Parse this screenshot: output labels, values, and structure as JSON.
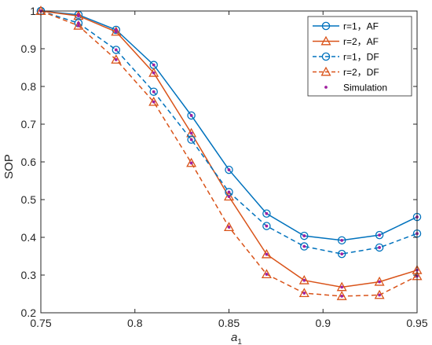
{
  "chart_data": {
    "type": "line",
    "xlabel": "a",
    "xlabel_sub": "1",
    "ylabel": "SOP",
    "xlim": [
      0.75,
      0.95
    ],
    "ylim": [
      0.2,
      1.0
    ],
    "xticks": [
      0.75,
      0.8,
      0.85,
      0.9,
      0.95
    ],
    "xtick_labels": [
      "0.75",
      "0.8",
      "0.85",
      "0.9",
      "0.95"
    ],
    "yticks": [
      0.2,
      0.3,
      0.4,
      0.5,
      0.6,
      0.7,
      0.8,
      0.9,
      1.0
    ],
    "ytick_labels": [
      "0.2",
      "0.3",
      "0.4",
      "0.5",
      "0.6",
      "0.7",
      "0.8",
      "0.9",
      "1"
    ],
    "grid": false,
    "legend_position": "top-right",
    "x": [
      0.75,
      0.77,
      0.79,
      0.81,
      0.83,
      0.85,
      0.87,
      0.89,
      0.91,
      0.93,
      0.95
    ],
    "series": [
      {
        "name": "r=1，AF",
        "color": "#0072BD",
        "dash": "solid",
        "marker": "circle",
        "values": [
          1.0,
          0.99,
          0.95,
          0.857,
          0.723,
          0.579,
          0.463,
          0.404,
          0.392,
          0.406,
          0.454
        ]
      },
      {
        "name": "r=2，AF",
        "color": "#D95319",
        "dash": "solid",
        "marker": "triangle",
        "values": [
          1.0,
          0.987,
          0.945,
          0.836,
          0.676,
          0.508,
          0.355,
          0.286,
          0.268,
          0.282,
          0.313
        ]
      },
      {
        "name": "r=1，DF",
        "color": "#0072BD",
        "dash": "dashed",
        "marker": "circle",
        "values": [
          1.0,
          0.968,
          0.897,
          0.786,
          0.659,
          0.52,
          0.43,
          0.376,
          0.356,
          0.373,
          0.41
        ]
      },
      {
        "name": "r=2，DF",
        "color": "#D95319",
        "dash": "dashed",
        "marker": "triangle",
        "values": [
          1.0,
          0.961,
          0.871,
          0.759,
          0.597,
          0.427,
          0.302,
          0.252,
          0.244,
          0.247,
          0.297
        ]
      }
    ],
    "simulation": {
      "name": "Simulation",
      "color": "#A020A0",
      "marker": "dot"
    }
  }
}
